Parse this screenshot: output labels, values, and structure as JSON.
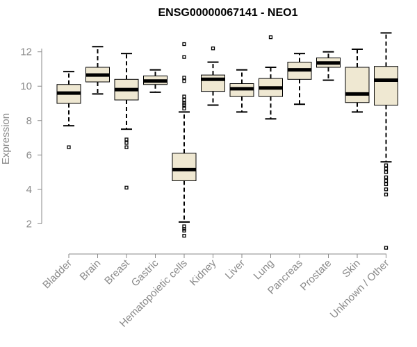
{
  "chart_data": {
    "type": "boxplot",
    "title": "ENSG00000067141 - NEO1",
    "xlabel": "",
    "ylabel": "Expression",
    "ylim": [
      0.4,
      13.4
    ],
    "yticks": [
      2,
      4,
      6,
      8,
      10,
      12
    ],
    "box_color": "#efe8d2",
    "series": [
      {
        "name": "Bladder",
        "whisker_low": 7.7,
        "q1": 9.0,
        "median": 9.6,
        "q3": 10.1,
        "whisker_high": 10.85,
        "outliers": [
          6.45
        ]
      },
      {
        "name": "Brain",
        "whisker_low": 9.55,
        "q1": 10.25,
        "median": 10.65,
        "q3": 11.1,
        "whisker_high": 12.3,
        "outliers": []
      },
      {
        "name": "Breast",
        "whisker_low": 7.5,
        "q1": 9.2,
        "median": 9.8,
        "q3": 10.4,
        "whisker_high": 11.9,
        "outliers": [
          6.9,
          6.7,
          6.45,
          4.1
        ]
      },
      {
        "name": "Gastric",
        "whisker_low": 9.65,
        "q1": 10.1,
        "median": 10.3,
        "q3": 10.6,
        "whisker_high": 10.95,
        "outliers": []
      },
      {
        "name": "Hematopoietic cells",
        "whisker_low": 2.1,
        "q1": 4.5,
        "median": 5.15,
        "q3": 6.1,
        "whisker_high": 8.5,
        "outliers": [
          12.45,
          11.7,
          10.5,
          10.3,
          9.4,
          9.2,
          9.0,
          8.9,
          8.7,
          1.85,
          1.7,
          1.6,
          1.3
        ]
      },
      {
        "name": "Kidney",
        "whisker_low": 8.9,
        "q1": 9.7,
        "median": 10.4,
        "q3": 10.65,
        "whisker_high": 11.4,
        "outliers": [
          12.2
        ]
      },
      {
        "name": "Liver",
        "whisker_low": 8.5,
        "q1": 9.4,
        "median": 9.85,
        "q3": 10.15,
        "whisker_high": 10.95,
        "outliers": []
      },
      {
        "name": "Lung",
        "whisker_low": 8.1,
        "q1": 9.4,
        "median": 9.9,
        "q3": 10.45,
        "whisker_high": 11.1,
        "outliers": [
          12.85
        ]
      },
      {
        "name": "Pancreas",
        "whisker_low": 8.95,
        "q1": 10.4,
        "median": 10.95,
        "q3": 11.4,
        "whisker_high": 11.9,
        "outliers": []
      },
      {
        "name": "Prostate",
        "whisker_low": 10.35,
        "q1": 11.1,
        "median": 11.35,
        "q3": 11.65,
        "whisker_high": 12.0,
        "outliers": []
      },
      {
        "name": "Skin",
        "whisker_low": 8.5,
        "q1": 9.05,
        "median": 9.55,
        "q3": 11.1,
        "whisker_high": 12.15,
        "outliers": []
      },
      {
        "name": "Unknown / Other",
        "whisker_low": 5.6,
        "q1": 8.9,
        "median": 10.35,
        "q3": 11.15,
        "whisker_high": 13.1,
        "outliers": [
          5.4,
          5.2,
          5.0,
          4.7,
          4.5,
          4.3,
          4.0,
          3.7,
          0.6
        ]
      }
    ]
  }
}
